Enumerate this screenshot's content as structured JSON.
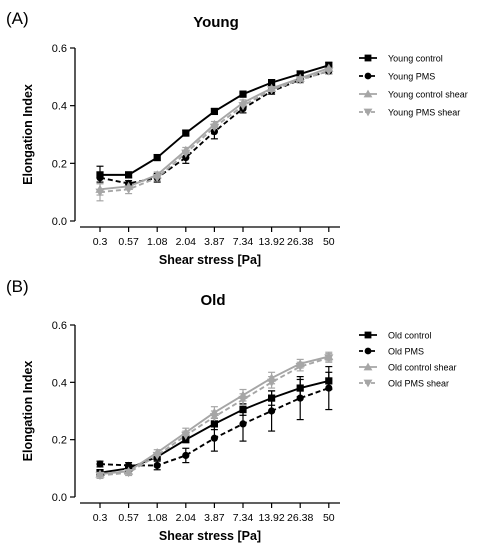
{
  "panels": [
    {
      "panel_label": "(A)",
      "chart_data": {
        "type": "line",
        "title": "Young",
        "xlabel": "Shear stress [Pa]",
        "ylabel": "Elongation  Index",
        "categories": [
          "0.3",
          "0.57",
          "1.08",
          "2.04",
          "3.87",
          "7.34",
          "13.92",
          "26.38",
          "50"
        ],
        "ylim": [
          0,
          0.6
        ],
        "yticks": [
          "0.0",
          "0.2",
          "0.4",
          "0.6"
        ],
        "legend_position": "right",
        "series": [
          {
            "name": "Young control",
            "color": "#000000",
            "dash": "solid",
            "marker": "square",
            "values": [
              0.16,
              0.16,
              0.22,
              0.305,
              0.38,
              0.44,
              0.48,
              0.51,
              0.54
            ],
            "errors": [
              0.03,
              0.01,
              0.01,
              0.01,
              0.01,
              0.01,
              0.01,
              0.01,
              0.01
            ]
          },
          {
            "name": "Young PMS",
            "color": "#000000",
            "dash": "dashed",
            "marker": "circle",
            "values": [
              0.15,
              0.13,
              0.15,
              0.22,
              0.31,
              0.39,
              0.45,
              0.49,
              0.52
            ],
            "errors": [
              0.015,
              0.01,
              0.015,
              0.02,
              0.025,
              0.015,
              0.01,
              0.01,
              0.01
            ]
          },
          {
            "name": "Young control shear",
            "color": "#a6a6a6",
            "dash": "solid",
            "marker": "triangle-up",
            "values": [
              0.11,
              0.12,
              0.16,
              0.245,
              0.335,
              0.41,
              0.46,
              0.495,
              0.53
            ],
            "errors": [
              0.02,
              0.01,
              0.01,
              0.01,
              0.01,
              0.01,
              0.01,
              0.01,
              0.01
            ]
          },
          {
            "name": "Young PMS shear",
            "color": "#a6a6a6",
            "dash": "dashed",
            "marker": "triangle-down",
            "values": [
              0.1,
              0.11,
              0.15,
              0.235,
              0.325,
              0.4,
              0.455,
              0.49,
              0.52
            ],
            "errors": [
              0.03,
              0.015,
              0.01,
              0.01,
              0.01,
              0.01,
              0.01,
              0.01,
              0.01
            ]
          }
        ]
      }
    },
    {
      "panel_label": "(B)",
      "chart_data": {
        "type": "line",
        "title": "Old",
        "xlabel": "Shear stress [Pa]",
        "ylabel": "Elongation  Index",
        "categories": [
          "0.3",
          "0.57",
          "1.08",
          "2.04",
          "3.87",
          "7.34",
          "13.92",
          "26.38",
          "50"
        ],
        "ylim": [
          0,
          0.6
        ],
        "yticks": [
          "0.0",
          "0.2",
          "0.4",
          "0.6"
        ],
        "legend_position": "right",
        "series": [
          {
            "name": "Old control",
            "color": "#000000",
            "dash": "solid",
            "marker": "square",
            "values": [
              0.085,
              0.1,
              0.14,
              0.2,
              0.255,
              0.305,
              0.345,
              0.38,
              0.405
            ],
            "errors": [
              0.01,
              0.01,
              0.01,
              0.01,
              0.02,
              0.02,
              0.025,
              0.03,
              0.03
            ]
          },
          {
            "name": "Old PMS",
            "color": "#000000",
            "dash": "dashed",
            "marker": "circle",
            "values": [
              0.115,
              0.11,
              0.11,
              0.145,
              0.205,
              0.255,
              0.3,
              0.345,
              0.38
            ],
            "errors": [
              0.01,
              0.01,
              0.015,
              0.025,
              0.045,
              0.06,
              0.07,
              0.075,
              0.075
            ]
          },
          {
            "name": "Old control shear",
            "color": "#a6a6a6",
            "dash": "solid",
            "marker": "triangle-up",
            "values": [
              0.08,
              0.09,
              0.155,
              0.225,
              0.295,
              0.355,
              0.415,
              0.465,
              0.49
            ],
            "errors": [
              0.01,
              0.01,
              0.01,
              0.015,
              0.02,
              0.02,
              0.02,
              0.015,
              0.015
            ]
          },
          {
            "name": "Old PMS shear",
            "color": "#a6a6a6",
            "dash": "dashed",
            "marker": "triangle-down",
            "values": [
              0.075,
              0.085,
              0.145,
              0.215,
              0.28,
              0.34,
              0.4,
              0.455,
              0.485
            ],
            "errors": [
              0.01,
              0.01,
              0.01,
              0.015,
              0.02,
              0.02,
              0.02,
              0.015,
              0.015
            ]
          }
        ]
      }
    }
  ]
}
